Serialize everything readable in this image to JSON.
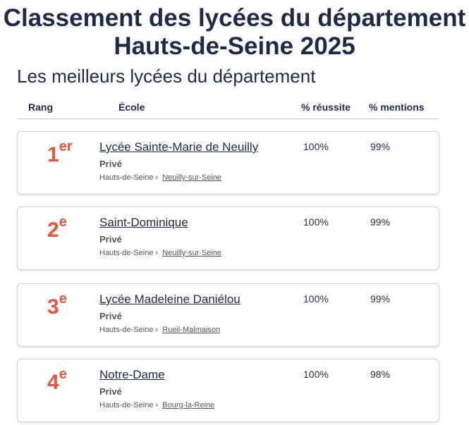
{
  "title_line1": "Classement des lycées du département",
  "title_line2": "Hauts-de-Seine 2025",
  "subtitle": "Les meilleurs lycées du département",
  "columns": {
    "rank": "Rang",
    "school": "École",
    "success": "% réussite",
    "mentions": "% mentions"
  },
  "colors": {
    "rank": "#e8553c",
    "text": "#1e2a4a"
  },
  "schools": [
    {
      "rank": "1",
      "suffix": "er",
      "name": "Lycée Sainte-Marie de Neuilly",
      "type": "Privé",
      "department": "Hauts-de-Seine",
      "city": "Neuilly-sur-Seine",
      "success": "100%",
      "mentions": "99%"
    },
    {
      "rank": "2",
      "suffix": "e",
      "name": "Saint-Dominique",
      "type": "Privé",
      "department": "Hauts-de-Seine",
      "city": "Neuilly-sur-Seine",
      "success": "100%",
      "mentions": "99%"
    },
    {
      "rank": "3",
      "suffix": "e",
      "name": "Lycée Madeleine Daniélou",
      "type": "Privé",
      "department": "Hauts-de-Seine",
      "city": "Rueil-Malmaison",
      "success": "100%",
      "mentions": "99%"
    },
    {
      "rank": "4",
      "suffix": "e",
      "name": "Notre-Dame",
      "type": "Privé",
      "department": "Hauts-de-Seine",
      "city": "Bourg-la-Reine",
      "success": "100%",
      "mentions": "98%"
    }
  ]
}
